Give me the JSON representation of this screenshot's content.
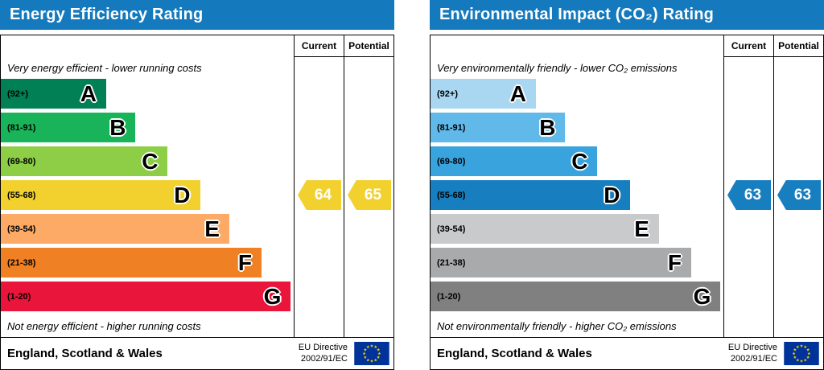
{
  "theme": {
    "header_bg": "#1479bd",
    "header_text": "#ffffff"
  },
  "chart_data": [
    {
      "type": "bar",
      "title": "Energy Efficiency Rating",
      "columns": [
        "Current",
        "Potential"
      ],
      "top_caption": "Very energy efficient - lower running costs",
      "bottom_caption": "Not energy efficient - higher running costs",
      "bands": [
        {
          "letter": "A",
          "label": "(92+)",
          "min": 92,
          "max": 100,
          "color": "#008054",
          "width_pct": 36
        },
        {
          "letter": "B",
          "label": "(81-91)",
          "min": 81,
          "max": 91,
          "color": "#19b459",
          "width_pct": 46
        },
        {
          "letter": "C",
          "label": "(69-80)",
          "min": 69,
          "max": 80,
          "color": "#8dce46",
          "width_pct": 57
        },
        {
          "letter": "D",
          "label": "(55-68)",
          "min": 55,
          "max": 68,
          "color": "#f2d12e",
          "width_pct": 68
        },
        {
          "letter": "E",
          "label": "(39-54)",
          "min": 39,
          "max": 54,
          "color": "#fcaa65",
          "width_pct": 78
        },
        {
          "letter": "F",
          "label": "(21-38)",
          "min": 21,
          "max": 38,
          "color": "#ef8023",
          "width_pct": 89
        },
        {
          "letter": "G",
          "label": "(1-20)",
          "min": 1,
          "max": 20,
          "color": "#e9153b",
          "width_pct": 99
        }
      ],
      "current": {
        "value": 64,
        "color": "#f2d12e"
      },
      "potential": {
        "value": 65,
        "color": "#f2d12e"
      },
      "footer": {
        "region": "England, Scotland & Wales",
        "directive_line1": "EU Directive",
        "directive_line2": "2002/91/EC"
      }
    },
    {
      "type": "bar",
      "title": "Environmental Impact (CO₂) Rating",
      "columns": [
        "Current",
        "Potential"
      ],
      "top_caption": "Very environmentally friendly - lower CO₂ emissions",
      "bottom_caption": "Not environmentally friendly - higher CO₂ emissions",
      "bands": [
        {
          "letter": "A",
          "label": "(92+)",
          "min": 92,
          "max": 100,
          "color": "#a9d7f2",
          "width_pct": 36
        },
        {
          "letter": "B",
          "label": "(81-91)",
          "min": 81,
          "max": 91,
          "color": "#60b9e9",
          "width_pct": 46
        },
        {
          "letter": "C",
          "label": "(69-80)",
          "min": 69,
          "max": 80,
          "color": "#38a3dc",
          "width_pct": 57
        },
        {
          "letter": "D",
          "label": "(55-68)",
          "min": 55,
          "max": 68,
          "color": "#177fc0",
          "width_pct": 68
        },
        {
          "letter": "E",
          "label": "(39-54)",
          "min": 39,
          "max": 54,
          "color": "#c9cacc",
          "width_pct": 78
        },
        {
          "letter": "F",
          "label": "(21-38)",
          "min": 21,
          "max": 38,
          "color": "#a9aaac",
          "width_pct": 89
        },
        {
          "letter": "G",
          "label": "(1-20)",
          "min": 1,
          "max": 20,
          "color": "#808080",
          "width_pct": 99
        }
      ],
      "current": {
        "value": 63,
        "color": "#177fc0"
      },
      "potential": {
        "value": 63,
        "color": "#177fc0"
      },
      "footer": {
        "region": "England, Scotland & Wales",
        "directive_line1": "EU Directive",
        "directive_line2": "2002/91/EC"
      }
    }
  ]
}
